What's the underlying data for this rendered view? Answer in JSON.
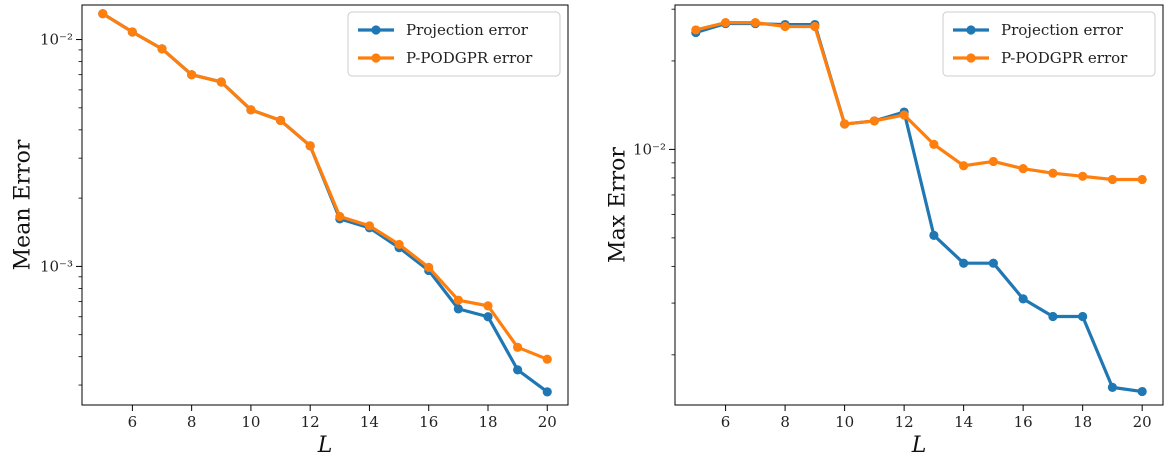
{
  "chart_data": [
    {
      "type": "line",
      "scale_y": "log",
      "xlabel": "L",
      "ylabel": "Mean Error",
      "xlim": [
        4.3,
        20.7
      ],
      "ylim": [
        0.000245,
        0.0142
      ],
      "xticks": [
        6,
        8,
        10,
        12,
        14,
        16,
        18,
        20
      ],
      "yticks": [
        {
          "value": 0.01,
          "label": "10⁻²"
        },
        {
          "value": 0.001,
          "label": "10⁻³"
        }
      ],
      "legend_position": "top-right",
      "x": [
        5,
        6,
        7,
        8,
        9,
        10,
        11,
        12,
        13,
        14,
        15,
        16,
        17,
        18,
        19,
        20
      ],
      "series": [
        {
          "name": "Projection error",
          "color": "#1f77b4",
          "values": [
            0.013,
            0.0108,
            0.0091,
            0.007,
            0.0065,
            0.0049,
            0.0044,
            0.0034,
            0.00162,
            0.00148,
            0.00121,
            0.00096,
            0.00065,
            0.0006,
            0.00035,
            0.00028
          ]
        },
        {
          "name": "P-PODGPR error",
          "color": "#ff7f0e",
          "values": [
            0.013,
            0.0108,
            0.0091,
            0.007,
            0.0065,
            0.0049,
            0.0044,
            0.0034,
            0.00166,
            0.00151,
            0.00125,
            0.00099,
            0.00071,
            0.00067,
            0.00044,
            0.00039
          ]
        }
      ]
    },
    {
      "type": "line",
      "scale_y": "log",
      "xlabel": "L",
      "ylabel": "Max Error",
      "xlim": [
        4.3,
        20.7
      ],
      "ylim": [
        0.00135,
        0.031
      ],
      "xticks": [
        6,
        8,
        10,
        12,
        14,
        16,
        18,
        20
      ],
      "yticks": [
        {
          "value": 0.01,
          "label": "10⁻²"
        }
      ],
      "legend_position": "top-right",
      "x": [
        5,
        6,
        7,
        8,
        9,
        10,
        11,
        12,
        13,
        14,
        15,
        16,
        17,
        18,
        19,
        20
      ],
      "series": [
        {
          "name": "Projection error",
          "color": "#1f77b4",
          "values": [
            0.025,
            0.0268,
            0.0268,
            0.0266,
            0.0266,
            0.0122,
            0.0125,
            0.0134,
            0.0051,
            0.0041,
            0.0041,
            0.0031,
            0.0027,
            0.0027,
            0.00155,
            0.0015
          ]
        },
        {
          "name": "P-PODGPR error",
          "color": "#ff7f0e",
          "values": [
            0.0255,
            0.027,
            0.027,
            0.0262,
            0.0262,
            0.0122,
            0.0125,
            0.0131,
            0.0104,
            0.0088,
            0.0091,
            0.0086,
            0.0083,
            0.0081,
            0.0079,
            0.0079
          ]
        }
      ]
    }
  ]
}
